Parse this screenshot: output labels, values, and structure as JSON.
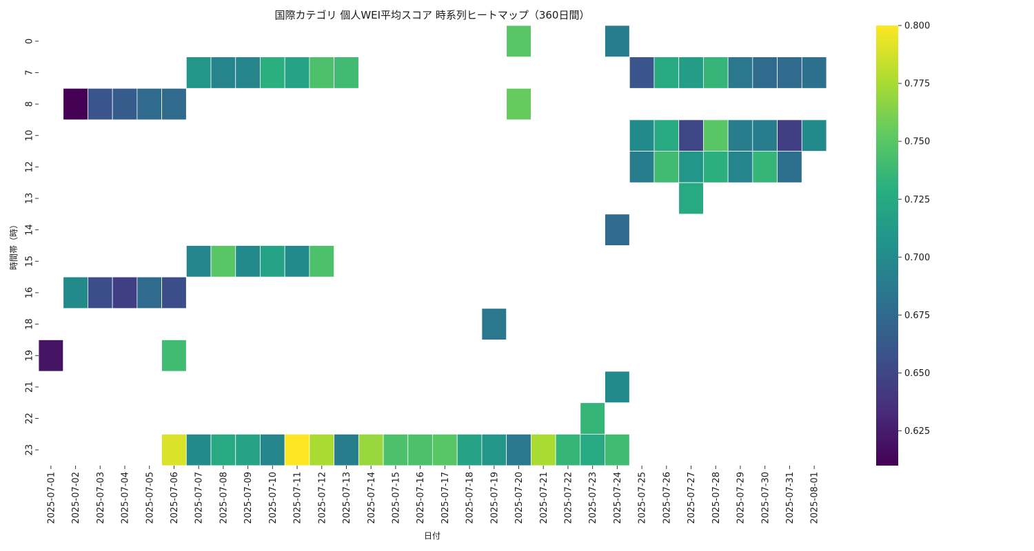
{
  "chart_data": {
    "type": "heatmap",
    "title": "国際カテゴリ 個人WEI平均スコア 時系列ヒートマップ（360日間）",
    "xlabel": "日付",
    "ylabel": "時間帯（時）",
    "colormap": "viridis",
    "vmin": 0.61,
    "vmax": 0.8,
    "colorbar_ticks": [
      "0.625",
      "0.650",
      "0.675",
      "0.700",
      "0.725",
      "0.750",
      "0.775",
      "0.800"
    ],
    "x": [
      "2025-07-01",
      "2025-07-02",
      "2025-07-03",
      "2025-07-04",
      "2025-07-05",
      "2025-07-06",
      "2025-07-07",
      "2025-07-08",
      "2025-07-09",
      "2025-07-10",
      "2025-07-11",
      "2025-07-12",
      "2025-07-13",
      "2025-07-14",
      "2025-07-15",
      "2025-07-16",
      "2025-07-17",
      "2025-07-18",
      "2025-07-19",
      "2025-07-20",
      "2025-07-21",
      "2025-07-22",
      "2025-07-23",
      "2025-07-24",
      "2025-07-25",
      "2025-07-26",
      "2025-07-27",
      "2025-07-28",
      "2025-07-29",
      "2025-07-30",
      "2025-07-31",
      "2025-08-01"
    ],
    "y": [
      "0",
      "7",
      "8",
      "10",
      "12",
      "13",
      "14",
      "15",
      "16",
      "18",
      "19",
      "21",
      "22",
      "23"
    ],
    "values": [
      [
        null,
        null,
        null,
        null,
        null,
        null,
        null,
        null,
        null,
        null,
        null,
        null,
        null,
        null,
        null,
        null,
        null,
        null,
        null,
        0.75,
        null,
        null,
        null,
        0.69,
        null,
        null,
        null,
        null,
        null,
        null,
        null,
        null
      ],
      [
        null,
        null,
        null,
        null,
        null,
        null,
        0.71,
        0.695,
        0.695,
        0.73,
        0.72,
        0.745,
        0.74,
        null,
        null,
        null,
        null,
        null,
        null,
        null,
        null,
        null,
        null,
        null,
        0.66,
        0.725,
        0.715,
        0.735,
        0.685,
        0.675,
        0.675,
        0.68
      ],
      [
        null,
        0.61,
        0.66,
        0.665,
        0.675,
        0.675,
        null,
        null,
        null,
        null,
        null,
        null,
        null,
        null,
        null,
        null,
        null,
        null,
        null,
        0.755,
        null,
        null,
        null,
        null,
        null,
        null,
        null,
        null,
        null,
        null,
        null,
        null
      ],
      [
        null,
        null,
        null,
        null,
        null,
        null,
        null,
        null,
        null,
        null,
        null,
        null,
        null,
        null,
        null,
        null,
        null,
        null,
        null,
        null,
        null,
        null,
        null,
        null,
        0.7,
        0.725,
        0.65,
        0.75,
        0.69,
        0.69,
        0.645,
        0.7
      ],
      [
        null,
        null,
        null,
        null,
        null,
        null,
        null,
        null,
        null,
        null,
        null,
        null,
        null,
        null,
        null,
        null,
        null,
        null,
        null,
        null,
        null,
        null,
        null,
        null,
        0.69,
        0.74,
        0.71,
        0.73,
        0.695,
        0.735,
        0.68,
        null
      ],
      [
        null,
        null,
        null,
        null,
        null,
        null,
        null,
        null,
        null,
        null,
        null,
        null,
        null,
        null,
        null,
        null,
        null,
        null,
        null,
        null,
        null,
        null,
        null,
        null,
        null,
        null,
        0.725,
        null,
        null,
        null,
        null,
        null
      ],
      [
        null,
        null,
        null,
        null,
        null,
        null,
        null,
        null,
        null,
        null,
        null,
        null,
        null,
        null,
        null,
        null,
        null,
        null,
        null,
        null,
        null,
        null,
        null,
        0.675,
        null,
        null,
        null,
        null,
        null,
        null,
        null,
        null
      ],
      [
        null,
        null,
        null,
        null,
        null,
        null,
        0.695,
        0.75,
        0.7,
        0.72,
        0.7,
        0.745,
        null,
        null,
        null,
        null,
        null,
        null,
        null,
        null,
        null,
        null,
        null,
        null,
        null,
        null,
        null,
        null,
        null,
        null,
        null,
        null
      ],
      [
        null,
        0.7,
        0.655,
        0.645,
        0.675,
        0.655,
        null,
        null,
        null,
        null,
        null,
        null,
        null,
        null,
        null,
        null,
        null,
        null,
        null,
        null,
        null,
        null,
        null,
        null,
        null,
        null,
        null,
        null,
        null,
        null,
        null,
        null
      ],
      [
        null,
        null,
        null,
        null,
        null,
        null,
        null,
        null,
        null,
        null,
        null,
        null,
        null,
        null,
        null,
        null,
        null,
        null,
        0.685,
        null,
        null,
        null,
        null,
        null,
        null,
        null,
        null,
        null,
        null,
        null,
        null,
        null
      ],
      [
        0.62,
        null,
        null,
        null,
        null,
        0.74,
        null,
        null,
        null,
        null,
        null,
        null,
        null,
        null,
        null,
        null,
        null,
        null,
        null,
        null,
        null,
        null,
        null,
        null,
        null,
        null,
        null,
        null,
        null,
        null,
        null,
        null
      ],
      [
        null,
        null,
        null,
        null,
        null,
        null,
        null,
        null,
        null,
        null,
        null,
        null,
        null,
        null,
        null,
        null,
        null,
        null,
        null,
        null,
        null,
        null,
        null,
        0.7,
        null,
        null,
        null,
        null,
        null,
        null,
        null,
        null
      ],
      [
        null,
        null,
        null,
        null,
        null,
        null,
        null,
        null,
        null,
        null,
        null,
        null,
        null,
        null,
        null,
        null,
        null,
        null,
        null,
        null,
        null,
        null,
        0.735,
        null,
        null,
        null,
        null,
        null,
        null,
        null,
        null,
        null
      ],
      [
        null,
        null,
        null,
        null,
        null,
        0.79,
        0.7,
        0.725,
        0.72,
        0.695,
        0.8,
        0.775,
        0.69,
        0.77,
        0.745,
        0.745,
        0.75,
        0.72,
        0.71,
        0.685,
        0.775,
        0.735,
        0.725,
        0.74,
        null,
        null,
        null,
        null,
        null,
        null,
        null,
        null
      ]
    ]
  }
}
